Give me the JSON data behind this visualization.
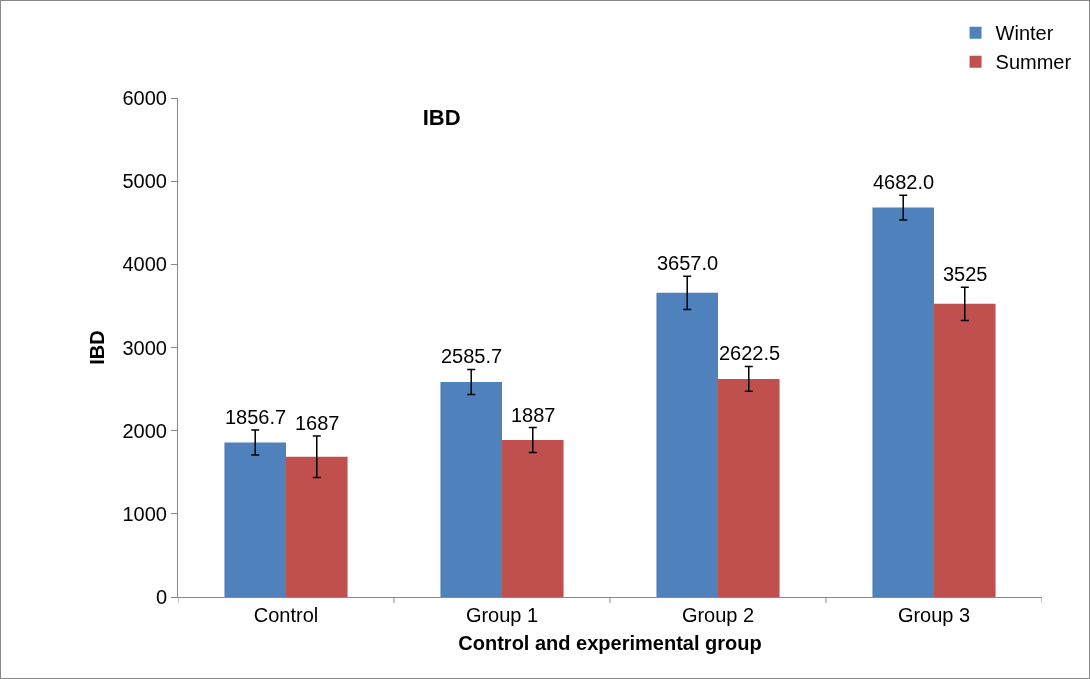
{
  "chart_data": {
    "type": "bar",
    "title": "IBD",
    "xlabel": "Control and experimental group",
    "ylabel": "IBD",
    "categories": [
      "Control",
      "Group 1",
      "Group 2",
      "Group 3"
    ],
    "series": [
      {
        "name": "Winter",
        "color": "#4f81bd",
        "values": [
          1856.7,
          2585.7,
          3657.0,
          4682.0
        ],
        "errors": [
          150,
          150,
          200,
          150
        ],
        "value_labels": [
          "1856.7",
          "2585.7",
          "3657.0",
          "4682.0"
        ]
      },
      {
        "name": "Summer",
        "color": "#c0504d",
        "values": [
          1687,
          1887,
          2622.5,
          3525
        ],
        "errors": [
          250,
          150,
          150,
          200
        ],
        "value_labels": [
          "1687",
          "1887",
          "2622.5",
          "3525"
        ]
      }
    ],
    "ylim": [
      0,
      6000
    ],
    "yticks": [
      0,
      1000,
      2000,
      3000,
      4000,
      5000,
      6000
    ],
    "grid": false,
    "legend": "top right"
  }
}
